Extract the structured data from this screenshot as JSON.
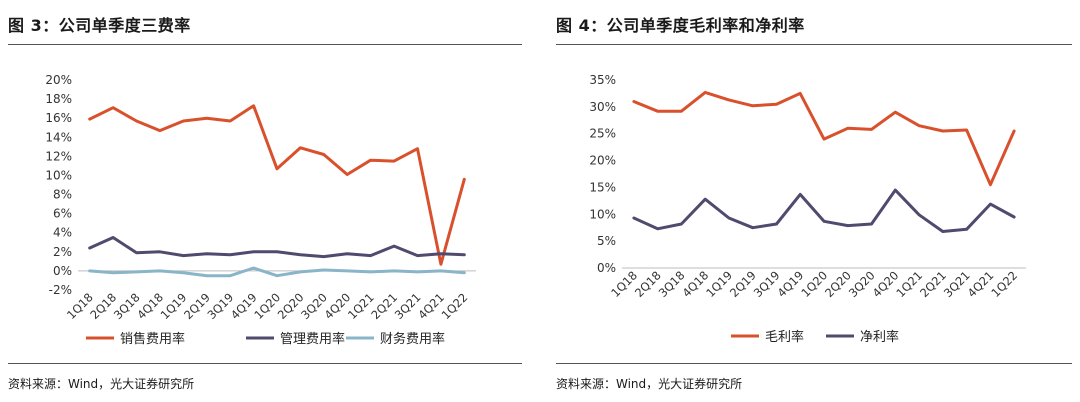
{
  "figures": [
    {
      "title": "图 3：公司单季度三费率",
      "source": "资料来源：Wind，光大证券研究所"
    },
    {
      "title": "图 4：公司单季度毛利率和净利率",
      "source": "资料来源：Wind，光大证券研究所"
    }
  ],
  "chart_data": [
    {
      "type": "line",
      "title": "图 3：公司单季度三费率",
      "categories": [
        "1Q18",
        "2Q18",
        "3Q18",
        "4Q18",
        "1Q19",
        "2Q19",
        "3Q19",
        "4Q19",
        "1Q20",
        "2Q20",
        "3Q20",
        "4Q20",
        "1Q21",
        "2Q21",
        "3Q21",
        "4Q21",
        "1Q22"
      ],
      "y_ticks": [
        "-2%",
        "0%",
        "2%",
        "4%",
        "6%",
        "8%",
        "10%",
        "12%",
        "14%",
        "16%",
        "18%",
        "20%"
      ],
      "ylim": [
        -2,
        20
      ],
      "y_unit": "%",
      "grid": false,
      "legend_position": "bottom",
      "series": [
        {
          "name": "销售费用率",
          "color": "#d9512c",
          "values": [
            15.9,
            17.1,
            15.7,
            14.7,
            15.7,
            16.0,
            15.7,
            17.3,
            10.7,
            12.9,
            12.2,
            10.1,
            11.6,
            11.5,
            12.8,
            0.7,
            9.6
          ]
        },
        {
          "name": "管理费用率",
          "color": "#4f4a6e",
          "values": [
            2.4,
            3.5,
            1.9,
            2.0,
            1.6,
            1.8,
            1.7,
            2.0,
            2.0,
            1.7,
            1.5,
            1.8,
            1.6,
            2.6,
            1.6,
            1.8,
            1.7
          ]
        },
        {
          "name": "财务费用率",
          "color": "#8ab4c8",
          "values": [
            0.0,
            -0.2,
            -0.1,
            0.0,
            -0.2,
            -0.5,
            -0.5,
            0.3,
            -0.5,
            -0.1,
            0.1,
            0.0,
            -0.1,
            0.0,
            -0.1,
            0.0,
            -0.2
          ]
        }
      ]
    },
    {
      "type": "line",
      "title": "图 4：公司单季度毛利率和净利率",
      "categories": [
        "1Q18",
        "2Q18",
        "3Q18",
        "4Q18",
        "1Q19",
        "2Q19",
        "3Q19",
        "4Q19",
        "1Q20",
        "2Q20",
        "3Q20",
        "4Q20",
        "1Q21",
        "2Q21",
        "3Q21",
        "4Q21",
        "1Q22"
      ],
      "y_ticks": [
        "0%",
        "5%",
        "10%",
        "15%",
        "20%",
        "25%",
        "30%",
        "35%"
      ],
      "ylim": [
        0,
        35
      ],
      "y_unit": "%",
      "grid": false,
      "legend_position": "bottom",
      "series": [
        {
          "name": "毛利率",
          "color": "#d9512c",
          "values": [
            31.0,
            29.2,
            29.2,
            32.7,
            31.3,
            30.2,
            30.5,
            32.5,
            24.0,
            26.0,
            25.8,
            29.0,
            26.5,
            25.5,
            25.7,
            15.5,
            25.5
          ]
        },
        {
          "name": "净利率",
          "color": "#4f4a6e",
          "values": [
            9.3,
            7.3,
            8.2,
            12.8,
            9.3,
            7.5,
            8.2,
            13.7,
            8.7,
            7.9,
            8.2,
            14.5,
            9.9,
            6.8,
            7.2,
            11.9,
            9.5
          ]
        }
      ]
    }
  ]
}
